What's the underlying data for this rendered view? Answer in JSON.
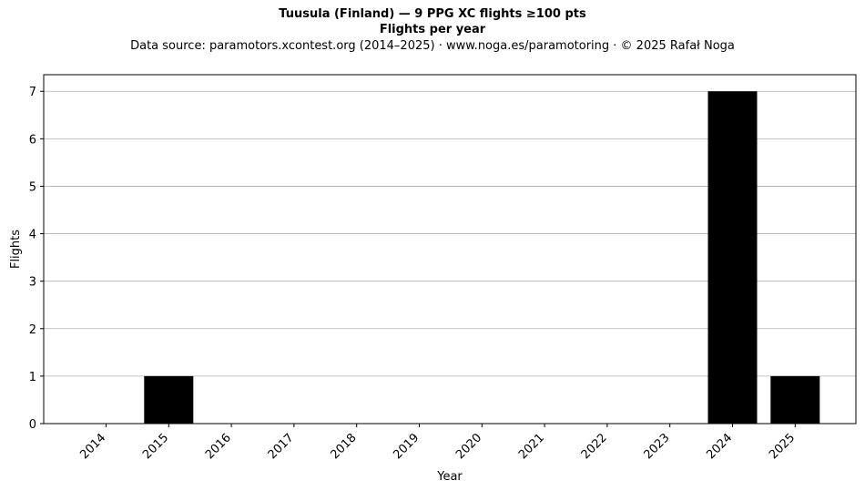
{
  "chart_data": {
    "type": "bar",
    "title": "Tuusula (Finland)  —  9 PPG XC flights ≥100 pts",
    "subtitle": "Flights per year",
    "source_note": "Data source: paramotors.xcontest.org (2014–2025)  ·  www.noga.es/paramotoring  ·  © 2025 Rafał Noga",
    "xlabel": "Year",
    "ylabel": "Flights",
    "categories": [
      "2014",
      "2015",
      "2016",
      "2017",
      "2018",
      "2019",
      "2020",
      "2021",
      "2022",
      "2023",
      "2024",
      "2025"
    ],
    "values": [
      0,
      1,
      0,
      0,
      0,
      0,
      0,
      0,
      0,
      0,
      7,
      1
    ],
    "ylim": [
      0,
      7.35
    ],
    "yticks": [
      0,
      1,
      2,
      3,
      4,
      5,
      6,
      7
    ],
    "grid": "y",
    "bar_color": "#000000",
    "grid_color": "#b0b0b0"
  }
}
